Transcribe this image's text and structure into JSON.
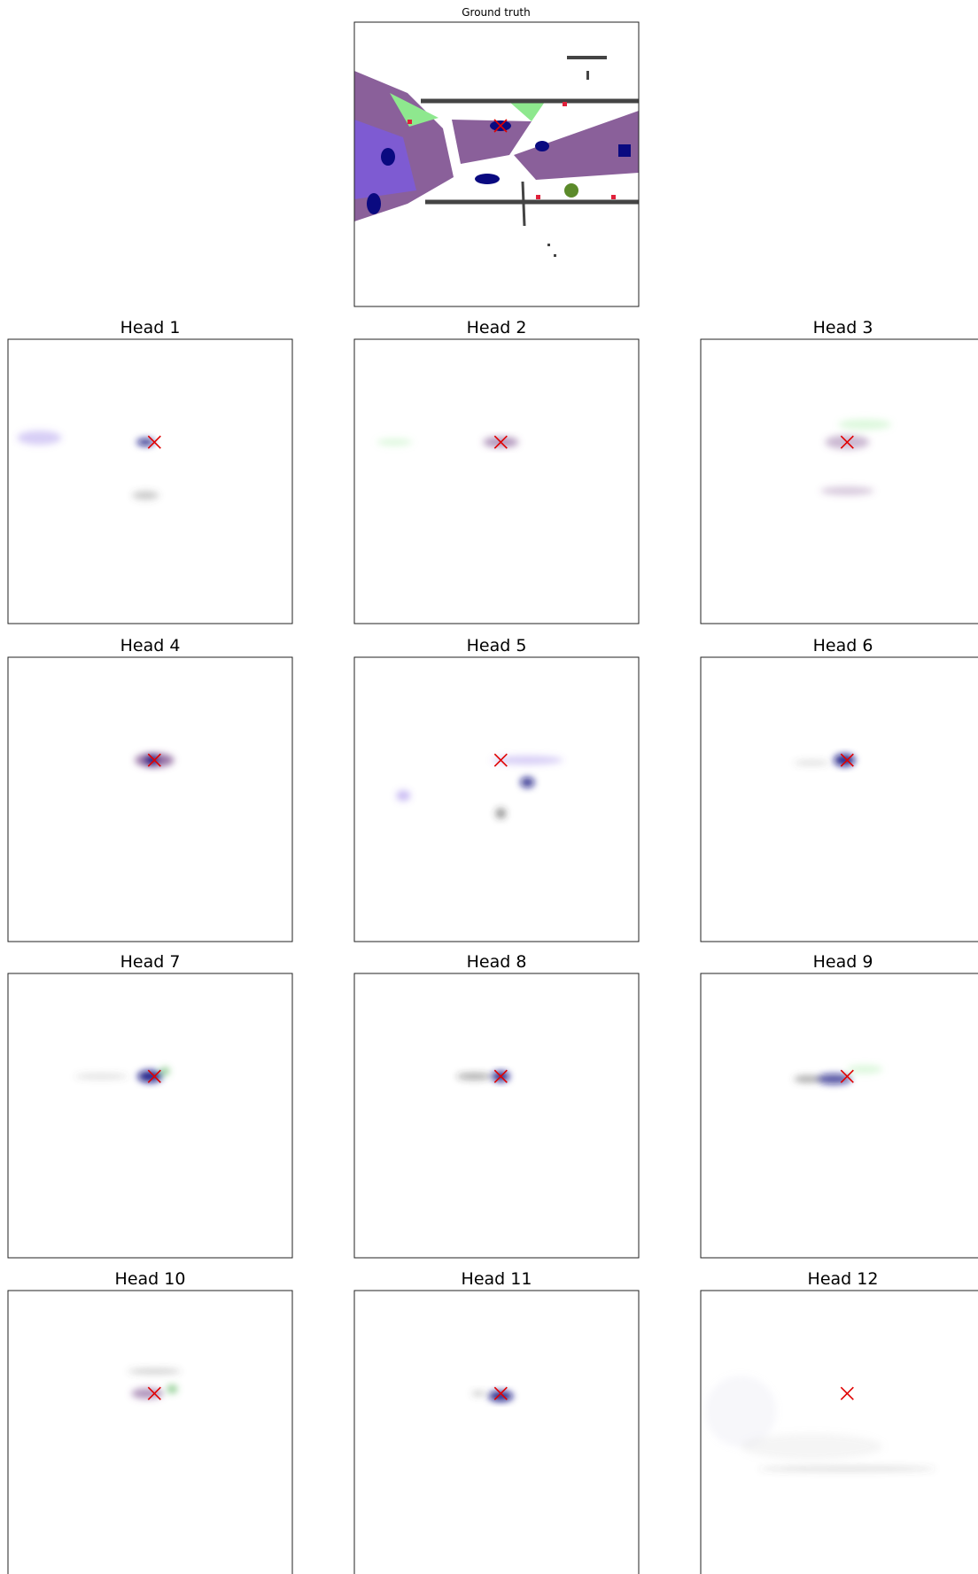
{
  "ground_truth": {
    "title": "Ground truth"
  },
  "heads": [
    {
      "title": "Head 1"
    },
    {
      "title": "Head 2"
    },
    {
      "title": "Head 3"
    },
    {
      "title": "Head 4"
    },
    {
      "title": "Head 5"
    },
    {
      "title": "Head 6"
    },
    {
      "title": "Head 7"
    },
    {
      "title": "Head 8"
    },
    {
      "title": "Head 9"
    },
    {
      "title": "Head 10"
    },
    {
      "title": "Head 11"
    },
    {
      "title": "Head 12"
    }
  ]
}
